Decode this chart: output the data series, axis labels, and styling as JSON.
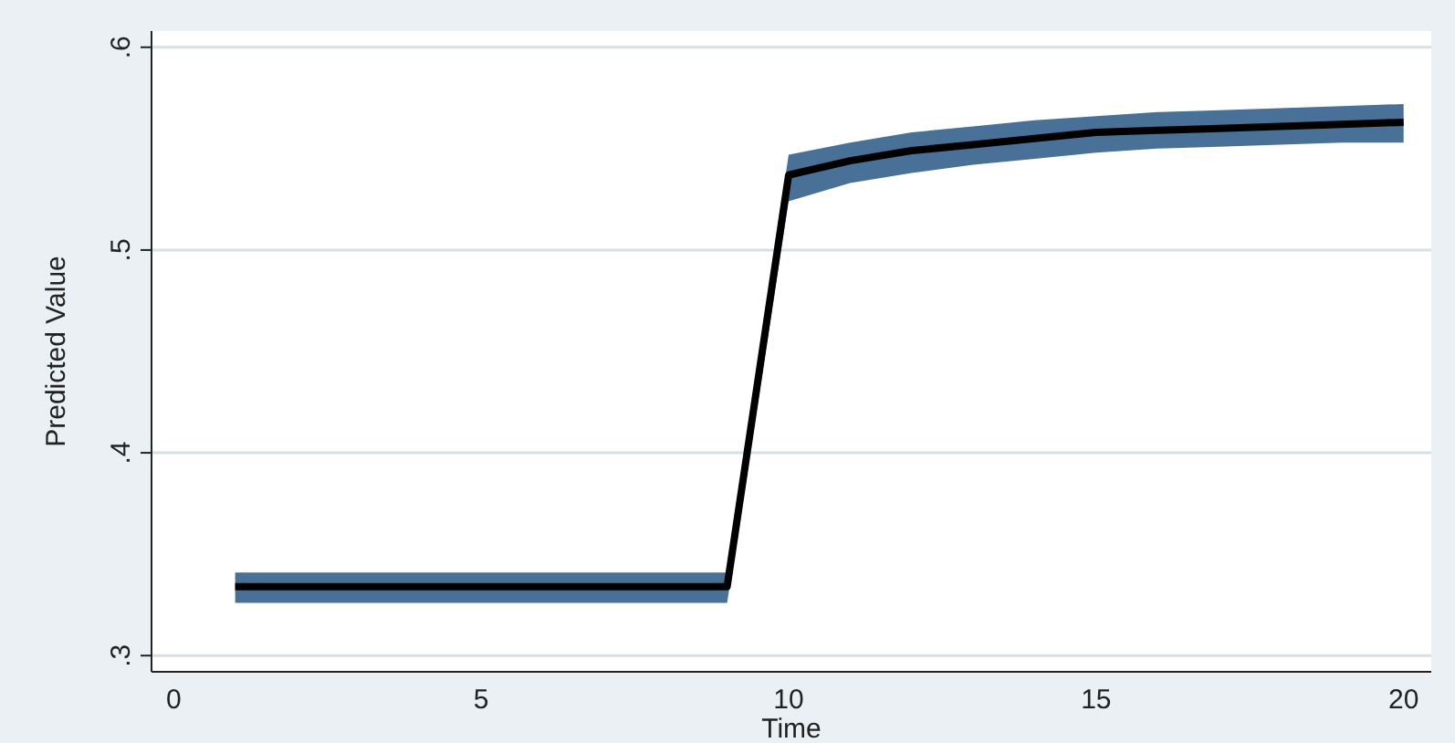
{
  "chart_data": {
    "type": "line",
    "xlabel": "Time",
    "ylabel": "Predicted Value",
    "x": [
      1,
      2,
      3,
      4,
      5,
      6,
      7,
      8,
      9,
      10,
      11,
      12,
      13,
      14,
      15,
      16,
      17,
      18,
      19,
      20
    ],
    "series": [
      {
        "color": "#000000",
        "values": [
          0.334,
          0.334,
          0.334,
          0.334,
          0.334,
          0.334,
          0.334,
          0.334,
          0.334,
          0.537,
          0.544,
          0.549,
          0.552,
          0.555,
          0.558,
          0.559,
          0.56,
          0.561,
          0.562,
          0.563
        ],
        "lower": [
          0.326,
          0.326,
          0.326,
          0.326,
          0.326,
          0.326,
          0.326,
          0.326,
          0.326,
          0.524,
          0.533,
          0.538,
          0.542,
          0.545,
          0.548,
          0.55,
          0.551,
          0.552,
          0.553,
          0.553
        ],
        "upper": [
          0.341,
          0.341,
          0.341,
          0.341,
          0.341,
          0.341,
          0.341,
          0.341,
          0.341,
          0.547,
          0.553,
          0.558,
          0.561,
          0.564,
          0.566,
          0.568,
          0.569,
          0.57,
          0.571,
          0.572
        ]
      }
    ],
    "xlim": [
      -0.36,
      20.45
    ],
    "xticks": [
      0,
      5,
      10,
      15,
      20
    ],
    "ylim": [
      0.292,
      0.608
    ],
    "yticks": [
      {
        "value": 0.3,
        "label": ".3"
      },
      {
        "value": 0.4,
        "label": ".4"
      },
      {
        "value": 0.5,
        "label": ".5"
      },
      {
        "value": 0.6,
        "label": ".6"
      }
    ],
    "grid": "y",
    "marker": "none",
    "line_style": "solid"
  }
}
